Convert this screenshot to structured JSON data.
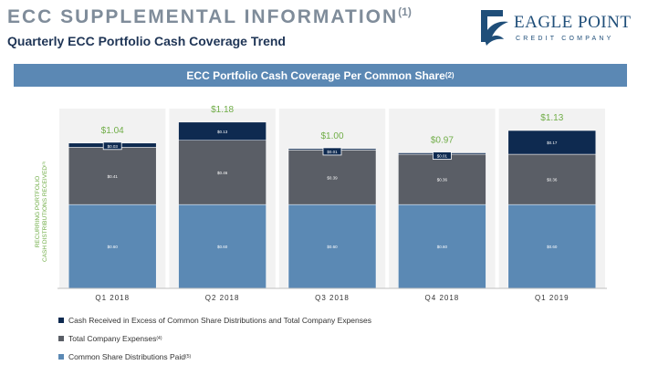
{
  "header": {
    "title": "ECC SUPPLEMENTAL INFORMATION",
    "title_note": "(1)",
    "subtitle": "Quarterly ECC Portfolio Cash Coverage Trend"
  },
  "logo": {
    "name": "EAGLE POINT",
    "tagline": "CREDIT COMPANY",
    "icon": "eagle-logo-icon"
  },
  "chart_data": {
    "type": "bar",
    "stacked": true,
    "title": "ECC Portfolio Cash Coverage Per Common Share",
    "title_note": "(2)",
    "ylabel_line1": "RECURRING PORTFOLIO",
    "ylabel_line2": "CASH DISTRIBUTIONS RECEIVED",
    "ylabel_note": "(3)",
    "categories": [
      "Q1 2018",
      "Q2 2018",
      "Q3 2018",
      "Q4 2018",
      "Q1 2019"
    ],
    "ylim": [
      0,
      1.3
    ],
    "grid": false,
    "legend_position": "bottom-left",
    "series": [
      {
        "name": "Common Share Distributions Paid",
        "note": "(5)",
        "color": "#5b89b4",
        "values": [
          0.6,
          0.6,
          0.6,
          0.6,
          0.6
        ],
        "labels": [
          "$0.60",
          "$0.60",
          "$0.60",
          "$0.60",
          "$0.60"
        ]
      },
      {
        "name": "Total Company Expenses",
        "note": "(4)",
        "color": "#5a5e66",
        "values": [
          0.41,
          0.46,
          0.39,
          0.36,
          0.36
        ],
        "labels": [
          "$0.41",
          "$0.46",
          "$0.39",
          "$0.36",
          "$0.36"
        ]
      },
      {
        "name": "Cash Received in Excess of  Common Share Distributions and Total Company Expenses",
        "note": "",
        "color": "#0e2a50",
        "values": [
          0.03,
          0.13,
          0.01,
          0.01,
          0.17
        ],
        "labels": [
          "$0.03",
          "$0.13",
          "$0.01",
          "$0.01",
          "$0.17"
        ]
      }
    ],
    "totals": [
      1.04,
      1.18,
      1.0,
      0.97,
      1.13
    ],
    "total_labels": [
      "$1.04",
      "$1.18",
      "$1.00",
      "$0.97",
      "$1.13"
    ],
    "total_label_color": "#70ad47"
  }
}
